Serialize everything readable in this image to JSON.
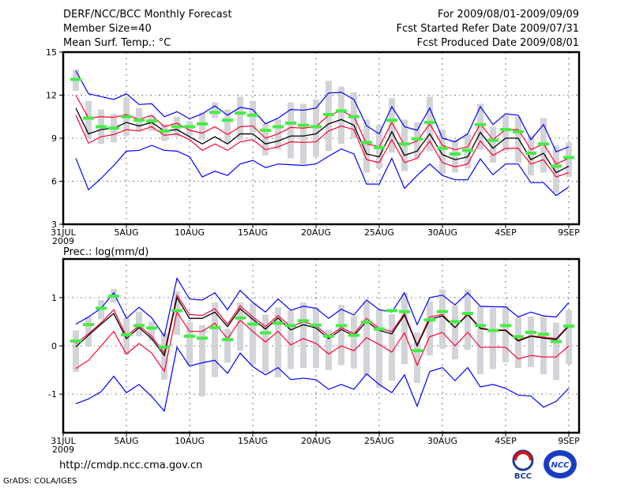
{
  "header": {
    "title": "DERF/NCC/BCC Monthly Forecast",
    "member_size": "Member Size=40",
    "variable": "Mean Surf. Temp.: °C",
    "period": "For 2009/08/01-2009/09/09",
    "start_date": "Fcst Started Refer Date 2009/07/31",
    "produced_date": "Fcst Produced Date 2009/08/01"
  },
  "footer": {
    "url": "http://cmdp.ncc.cma.gov.cn",
    "grads": "GrADS: COLA/IGES",
    "logo_bcc": "BCC",
    "logo_ncc": "NCC"
  },
  "colors": {
    "max_min": "#0000ff",
    "spread": "#ff0033",
    "mean": "#000000",
    "median": "#44ee44",
    "box": "#d3d4d8"
  },
  "chart_data": [
    {
      "type": "line",
      "title": "Mean Surf. Temp.: °C",
      "xlabel": "",
      "ylabel": "",
      "x_ticks": [
        {
          "day": 0,
          "label": "31JUL",
          "sub": "2009"
        },
        {
          "day": 5,
          "label": "5AUG"
        },
        {
          "day": 10,
          "label": "10AUG"
        },
        {
          "day": 15,
          "label": "15AUG"
        },
        {
          "day": 20,
          "label": "20AUG"
        },
        {
          "day": 25,
          "label": "25AUG"
        },
        {
          "day": 30,
          "label": "30AUG"
        },
        {
          "day": 35,
          "label": "4SEP"
        },
        {
          "day": 40,
          "label": "9SEP"
        }
      ],
      "y_ticks": [
        3,
        6,
        9,
        12,
        15
      ],
      "ylim": [
        3,
        15
      ],
      "grid": true,
      "days": [
        1,
        2,
        3,
        4,
        5,
        6,
        7,
        8,
        9,
        10,
        11,
        12,
        13,
        14,
        15,
        16,
        17,
        18,
        19,
        20,
        21,
        22,
        23,
        24,
        25,
        26,
        27,
        28,
        29,
        30,
        31,
        32,
        33,
        34,
        35,
        36,
        37,
        38,
        39,
        40
      ],
      "mean": [
        11.1,
        9.3,
        9.6,
        9.7,
        10.1,
        9.85,
        10.1,
        9.5,
        9.6,
        9.1,
        8.6,
        9.1,
        8.6,
        9.3,
        9.3,
        8.6,
        8.8,
        9.15,
        9.15,
        9.3,
        10.0,
        10.3,
        9.9,
        7.9,
        7.7,
        9.45,
        7.8,
        8.1,
        9.3,
        7.85,
        7.5,
        7.7,
        9.4,
        8.3,
        9.0,
        9.0,
        7.5,
        7.95,
        6.6,
        7.05
      ],
      "upper": [
        12.0,
        10.4,
        10.5,
        10.45,
        10.65,
        10.3,
        10.6,
        9.8,
        10.05,
        9.55,
        9.35,
        9.8,
        9.25,
        9.8,
        9.85,
        9.0,
        9.3,
        9.75,
        9.7,
        9.8,
        10.6,
        10.9,
        10.5,
        8.6,
        8.4,
        10.1,
        8.5,
        8.8,
        10.0,
        8.5,
        8.2,
        8.4,
        10.0,
        8.9,
        9.6,
        9.6,
        8.2,
        8.6,
        7.2,
        7.6
      ],
      "lower": [
        10.6,
        8.65,
        9.1,
        9.25,
        9.6,
        9.5,
        9.8,
        9.2,
        9.3,
        8.9,
        8.15,
        8.6,
        8.15,
        8.75,
        8.9,
        8.2,
        8.4,
        8.75,
        8.7,
        8.75,
        9.5,
        9.85,
        9.6,
        7.5,
        7.3,
        8.9,
        7.3,
        7.6,
        8.8,
        7.3,
        7.0,
        7.2,
        8.8,
        7.8,
        8.3,
        8.3,
        7.2,
        7.5,
        6.3,
        6.6
      ],
      "max": [
        13.7,
        12.1,
        11.9,
        11.7,
        12.1,
        11.35,
        11.4,
        10.5,
        10.85,
        10.35,
        10.7,
        11.25,
        10.6,
        11.15,
        11.0,
        10.0,
        10.4,
        11.0,
        10.95,
        11.1,
        12.15,
        12.2,
        11.7,
        9.87,
        9.3,
        11.2,
        9.8,
        9.55,
        11.1,
        9.0,
        8.75,
        9.3,
        11.2,
        9.95,
        10.7,
        10.6,
        8.9,
        9.95,
        8.05,
        8.4
      ],
      "min": [
        7.6,
        5.4,
        6.2,
        7.1,
        8.1,
        8.15,
        8.5,
        8.15,
        8.1,
        7.7,
        6.3,
        6.7,
        6.4,
        7.2,
        7.45,
        6.95,
        7.2,
        7.15,
        7.1,
        7.2,
        7.75,
        8.25,
        7.9,
        5.8,
        5.8,
        7.6,
        5.5,
        6.4,
        7.2,
        6.4,
        6.1,
        6.1,
        7.55,
        6.45,
        7.2,
        7.2,
        5.9,
        5.9,
        5.0,
        5.6
      ],
      "median": [
        13.1,
        10.4,
        9.8,
        9.7,
        10.5,
        10.25,
        10.2,
        9.5,
        9.8,
        9.8,
        10.0,
        10.8,
        10.25,
        10.75,
        10.6,
        9.55,
        9.8,
        10.05,
        9.9,
        9.8,
        10.65,
        10.9,
        10.5,
        8.7,
        8.35,
        10.25,
        8.6,
        8.95,
        10.1,
        8.3,
        7.9,
        8.15,
        9.95,
        8.85,
        9.6,
        9.45,
        7.95,
        8.6,
        7.05,
        7.65
      ],
      "box": [
        [
          12.3,
          13.8
        ],
        [
          9.0,
          11.6
        ],
        [
          8.6,
          11.0
        ],
        [
          8.7,
          10.7
        ],
        [
          9.2,
          11.8
        ],
        [
          9.5,
          11.1
        ],
        [
          9.5,
          10.6
        ],
        [
          8.8,
          10.0
        ],
        [
          9.1,
          10.5
        ],
        [
          9.2,
          10.2
        ],
        [
          8.9,
          10.8
        ],
        [
          10.4,
          11.5
        ],
        [
          8.6,
          11.0
        ],
        [
          8.9,
          11.9
        ],
        [
          9.4,
          11.6
        ],
        [
          7.8,
          10.0
        ],
        [
          8.2,
          10.3
        ],
        [
          7.6,
          11.5
        ],
        [
          7.2,
          11.4
        ],
        [
          7.7,
          11.7
        ],
        [
          8.1,
          13.0
        ],
        [
          8.6,
          12.6
        ],
        [
          9.0,
          12.2
        ],
        [
          6.6,
          10.3
        ],
        [
          6.9,
          9.9
        ],
        [
          8.0,
          11.8
        ],
        [
          6.7,
          10.3
        ],
        [
          7.6,
          10.1
        ],
        [
          8.1,
          11.9
        ],
        [
          6.5,
          9.6
        ],
        [
          6.6,
          8.9
        ],
        [
          6.9,
          9.3
        ],
        [
          8.2,
          11.4
        ],
        [
          7.3,
          9.8
        ],
        [
          8.1,
          10.6
        ],
        [
          7.3,
          10.5
        ],
        [
          6.4,
          9.2
        ],
        [
          6.6,
          10.4
        ],
        [
          5.2,
          8.5
        ],
        [
          6.3,
          8.7
        ]
      ]
    },
    {
      "type": "line",
      "title": "Prec.: log(mm/d)",
      "xlabel": "",
      "ylabel": "",
      "x_ticks": [
        {
          "day": 0,
          "label": "31JUL",
          "sub": "2009"
        },
        {
          "day": 5,
          "label": "5AUG"
        },
        {
          "day": 10,
          "label": "10AUG"
        },
        {
          "day": 15,
          "label": "15AUG"
        },
        {
          "day": 20,
          "label": "20AUG"
        },
        {
          "day": 25,
          "label": "25AUG"
        },
        {
          "day": 30,
          "label": "30AUG"
        },
        {
          "day": 35,
          "label": "4SEP"
        },
        {
          "day": 40,
          "label": "9SEP"
        }
      ],
      "y_ticks": [
        -1,
        0,
        1
      ],
      "ylim": [
        -1.8,
        1.8
      ],
      "grid": true,
      "days": [
        1,
        2,
        3,
        4,
        5,
        6,
        7,
        8,
        9,
        10,
        11,
        12,
        13,
        14,
        15,
        16,
        17,
        18,
        19,
        20,
        21,
        22,
        23,
        24,
        25,
        26,
        27,
        28,
        29,
        30,
        31,
        32,
        33,
        34,
        35,
        36,
        37,
        38,
        39,
        40
      ],
      "mean": [
        -0.02,
        0.22,
        0.45,
        0.67,
        0.15,
        0.38,
        0.15,
        -0.2,
        1.0,
        0.57,
        0.57,
        0.7,
        0.4,
        0.77,
        0.55,
        0.35,
        0.58,
        0.33,
        0.44,
        0.37,
        0.15,
        0.34,
        0.21,
        0.51,
        0.32,
        0.25,
        0.64,
        0.0,
        0.55,
        0.62,
        0.38,
        0.65,
        0.36,
        0.32,
        0.32,
        0.1,
        0.2,
        0.16,
        0.13,
        0.41
      ],
      "upper": [
        0.05,
        0.25,
        0.48,
        0.75,
        0.2,
        0.42,
        0.2,
        -0.15,
        1.05,
        0.65,
        0.63,
        0.77,
        0.45,
        0.83,
        0.6,
        0.4,
        0.63,
        0.4,
        0.5,
        0.42,
        0.2,
        0.38,
        0.25,
        0.57,
        0.36,
        0.3,
        0.67,
        0.02,
        0.6,
        0.65,
        0.38,
        0.67,
        0.37,
        0.33,
        0.33,
        0.12,
        0.21,
        0.18,
        0.15,
        0.43
      ],
      "lower": [
        -0.47,
        -0.3,
        0.0,
        0.3,
        -0.17,
        0.05,
        -0.15,
        -0.53,
        0.7,
        0.3,
        0.3,
        0.47,
        0.15,
        0.53,
        0.3,
        0.08,
        0.3,
        0.02,
        0.15,
        0.05,
        -0.17,
        0.0,
        -0.1,
        0.17,
        0.03,
        -0.13,
        0.27,
        -0.4,
        0.19,
        0.28,
        0.0,
        0.28,
        -0.03,
        -0.03,
        -0.03,
        -0.27,
        -0.2,
        -0.23,
        -0.23,
        0.0
      ],
      "max": [
        0.45,
        0.6,
        0.78,
        1.1,
        0.57,
        0.8,
        0.58,
        0.2,
        1.4,
        0.97,
        0.95,
        1.1,
        0.75,
        1.15,
        0.9,
        0.7,
        0.97,
        0.74,
        0.82,
        0.78,
        0.57,
        0.76,
        0.64,
        0.95,
        0.75,
        0.7,
        1.1,
        0.44,
        1.0,
        1.05,
        0.85,
        1.1,
        0.82,
        0.81,
        0.81,
        0.6,
        0.7,
        0.62,
        0.6,
        0.9
      ],
      "min": [
        -1.2,
        -1.1,
        -0.95,
        -0.63,
        -0.97,
        -0.8,
        -1.05,
        -1.35,
        -0.03,
        -0.42,
        -0.35,
        -0.3,
        -0.57,
        -0.15,
        -0.43,
        -0.6,
        -0.45,
        -0.7,
        -0.67,
        -0.7,
        -0.9,
        -0.8,
        -0.9,
        -0.58,
        -0.8,
        -0.97,
        -0.6,
        -1.25,
        -0.53,
        -0.45,
        -0.72,
        -0.45,
        -0.85,
        -0.8,
        -0.88,
        -1.02,
        -1.04,
        -1.27,
        -1.15,
        -0.88
      ],
      "median": [
        0.1,
        0.44,
        0.78,
        1.03,
        0.23,
        0.42,
        0.37,
        -0.03,
        0.73,
        0.2,
        0.16,
        0.38,
        0.13,
        0.58,
        0.45,
        0.27,
        0.47,
        0.42,
        0.52,
        0.43,
        0.2,
        0.42,
        0.22,
        0.49,
        0.35,
        0.73,
        0.71,
        -0.1,
        0.54,
        0.71,
        0.5,
        0.67,
        0.42,
        0.32,
        0.42,
        0.19,
        0.28,
        0.24,
        0.09,
        0.41
      ],
      "box": [
        [
          -0.54,
          0.32
        ],
        [
          -0.02,
          0.6
        ],
        [
          0.55,
          0.95
        ],
        [
          0.9,
          1.18
        ],
        [
          -0.18,
          0.58
        ],
        [
          0.2,
          0.7
        ],
        [
          0.1,
          0.5
        ],
        [
          -0.7,
          0.27
        ],
        [
          0.23,
          1.13
        ],
        [
          -0.4,
          0.5
        ],
        [
          -1.05,
          0.43
        ],
        [
          -0.65,
          0.9
        ],
        [
          -0.35,
          0.35
        ],
        [
          -0.1,
          0.9
        ],
        [
          -0.38,
          0.88
        ],
        [
          -0.55,
          0.65
        ],
        [
          -0.65,
          0.8
        ],
        [
          -0.48,
          0.73
        ],
        [
          -0.46,
          0.9
        ],
        [
          -0.46,
          0.8
        ],
        [
          -0.5,
          0.33
        ],
        [
          -0.4,
          0.85
        ],
        [
          -0.47,
          0.62
        ],
        [
          -0.62,
          0.92
        ],
        [
          -0.87,
          0.75
        ],
        [
          -0.72,
          0.66
        ],
        [
          -0.38,
          1.1
        ],
        [
          -0.77,
          0.28
        ],
        [
          -0.2,
          0.91
        ],
        [
          -0.06,
          1.17
        ],
        [
          -0.28,
          0.84
        ],
        [
          -0.08,
          1.17
        ],
        [
          -0.59,
          0.83
        ],
        [
          -0.48,
          0.78
        ],
        [
          -0.34,
          0.82
        ],
        [
          -0.46,
          0.6
        ],
        [
          -0.44,
          0.61
        ],
        [
          -0.59,
          0.6
        ],
        [
          -0.71,
          0.48
        ],
        [
          -0.38,
          0.74
        ]
      ]
    }
  ]
}
